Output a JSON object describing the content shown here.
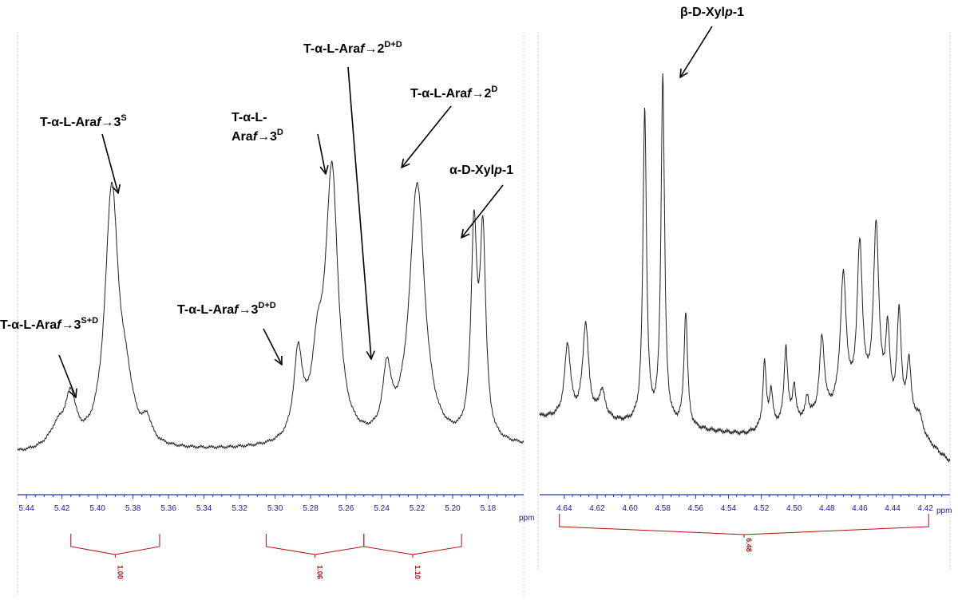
{
  "chart_data": [
    {
      "type": "line",
      "panel": "left",
      "x_unit": "ppm",
      "xlim": [
        5.445,
        5.16
      ],
      "x_reversed": true,
      "x_ticks": [
        "5.44",
        "5.42",
        "5.40",
        "5.38",
        "5.36",
        "5.34",
        "5.32",
        "5.30",
        "5.28",
        "5.26",
        "5.24",
        "5.22",
        "5.20",
        "5.18"
      ],
      "x_ticks_values": [
        5.44,
        5.42,
        5.4,
        5.38,
        5.36,
        5.34,
        5.32,
        5.3,
        5.28,
        5.26,
        5.24,
        5.22,
        5.2,
        5.18
      ],
      "spectrum": {
        "baseline": [
          [
            5.445,
            0.0
          ],
          [
            5.16,
            0.03
          ]
        ],
        "peaks": [
          {
            "ppm": 5.422,
            "h": 0.085,
            "w": 0.006
          },
          {
            "ppm": 5.415,
            "h": 0.18,
            "w": 0.0035
          },
          {
            "ppm": 5.392,
            "h": 1.0,
            "w": 0.0045
          },
          {
            "ppm": 5.384,
            "h": 0.18,
            "w": 0.005
          },
          {
            "ppm": 5.372,
            "h": 0.08,
            "w": 0.003
          },
          {
            "ppm": 5.287,
            "h": 0.33,
            "w": 0.003
          },
          {
            "ppm": 5.276,
            "h": 0.28,
            "w": 0.004
          },
          {
            "ppm": 5.268,
            "h": 1.05,
            "w": 0.0042
          },
          {
            "ppm": 5.237,
            "h": 0.25,
            "w": 0.0028
          },
          {
            "ppm": 5.22,
            "h": 1.02,
            "w": 0.0052
          },
          {
            "ppm": 5.188,
            "h": 0.8,
            "w": 0.002
          },
          {
            "ppm": 5.183,
            "h": 0.78,
            "w": 0.002
          }
        ]
      },
      "annotations": [
        {
          "base": "T-α-L-Ara",
          "italic": "f",
          "rest": "→3",
          "sup": "S+D",
          "target_ppm": 5.416
        },
        {
          "base": "T-α-L-Ara",
          "italic": "f",
          "rest": "→3",
          "sup": "S",
          "target_ppm": 5.392
        },
        {
          "base": "T-α-L-Ara",
          "italic": "f",
          "rest": "→3",
          "sup": "D+D",
          "target_ppm": 5.288
        },
        {
          "base": "T-α-L-",
          "base2": "Ara",
          "italic": "f",
          "rest": "→3",
          "sup": "D",
          "target_ppm": 5.268
        },
        {
          "base": "T-α-L-Ara",
          "italic": "f",
          "rest": "→2",
          "sup": "D+D",
          "target_ppm": 5.237
        },
        {
          "base": "T-α-L-Ara",
          "italic": "f",
          "rest": "→2",
          "sup": "D",
          "target_ppm": 5.22
        },
        {
          "base": "α-D-Xyl",
          "italic": "p",
          "rest": "-1",
          "sup": "",
          "target_ppm": 5.186
        }
      ],
      "integrals": [
        {
          "from": 5.415,
          "to": 5.365,
          "value": "1.00"
        },
        {
          "from": 5.305,
          "to": 5.25,
          "value": "1.06"
        },
        {
          "from": 5.25,
          "to": 5.195,
          "value": "1.10"
        }
      ]
    },
    {
      "type": "line",
      "panel": "right",
      "x_unit": "ppm",
      "xlim": [
        4.655,
        4.405
      ],
      "x_reversed": true,
      "x_ticks": [
        "4.64",
        "4.62",
        "4.60",
        "4.58",
        "4.56",
        "4.54",
        "4.52",
        "4.50",
        "4.48",
        "4.46",
        "4.44",
        "4.42"
      ],
      "x_ticks_values": [
        4.64,
        4.62,
        4.6,
        4.58,
        4.56,
        4.54,
        4.52,
        4.5,
        4.48,
        4.46,
        4.44,
        4.42
      ],
      "spectrum": {
        "baseline": [
          [
            4.655,
            0.05
          ],
          [
            4.53,
            0.0
          ],
          [
            4.45,
            0.08
          ],
          [
            4.405,
            -0.08
          ]
        ],
        "peaks": [
          {
            "ppm": 4.638,
            "h": 0.21,
            "w": 0.0022
          },
          {
            "ppm": 4.627,
            "h": 0.27,
            "w": 0.0022
          },
          {
            "ppm": 4.617,
            "h": 0.08,
            "w": 0.0025
          },
          {
            "ppm": 4.591,
            "h": 0.9,
            "w": 0.0013
          },
          {
            "ppm": 4.58,
            "h": 1.0,
            "w": 0.0013
          },
          {
            "ppm": 4.566,
            "h": 0.33,
            "w": 0.0013
          },
          {
            "ppm": 4.518,
            "h": 0.19,
            "w": 0.0012
          },
          {
            "ppm": 4.514,
            "h": 0.1,
            "w": 0.0012
          },
          {
            "ppm": 4.505,
            "h": 0.22,
            "w": 0.0013
          },
          {
            "ppm": 4.5,
            "h": 0.1,
            "w": 0.0012
          },
          {
            "ppm": 4.492,
            "h": 0.06,
            "w": 0.0012
          },
          {
            "ppm": 4.483,
            "h": 0.22,
            "w": 0.0018
          },
          {
            "ppm": 4.47,
            "h": 0.38,
            "w": 0.0022
          },
          {
            "ppm": 4.46,
            "h": 0.45,
            "w": 0.002
          },
          {
            "ppm": 4.45,
            "h": 0.5,
            "w": 0.002
          },
          {
            "ppm": 4.443,
            "h": 0.22,
            "w": 0.0015
          },
          {
            "ppm": 4.436,
            "h": 0.3,
            "w": 0.0016
          },
          {
            "ppm": 4.43,
            "h": 0.18,
            "w": 0.0016
          },
          {
            "ppm": 4.424,
            "h": 0.06,
            "w": 0.003
          }
        ]
      },
      "annotations": [
        {
          "base": "β-D-Xyl",
          "italic": "p",
          "rest": "-1",
          "sup": "",
          "target_ppm": 4.58
        }
      ],
      "integrals": [
        {
          "from": 4.643,
          "to": 4.418,
          "value": "6.48"
        }
      ]
    }
  ]
}
